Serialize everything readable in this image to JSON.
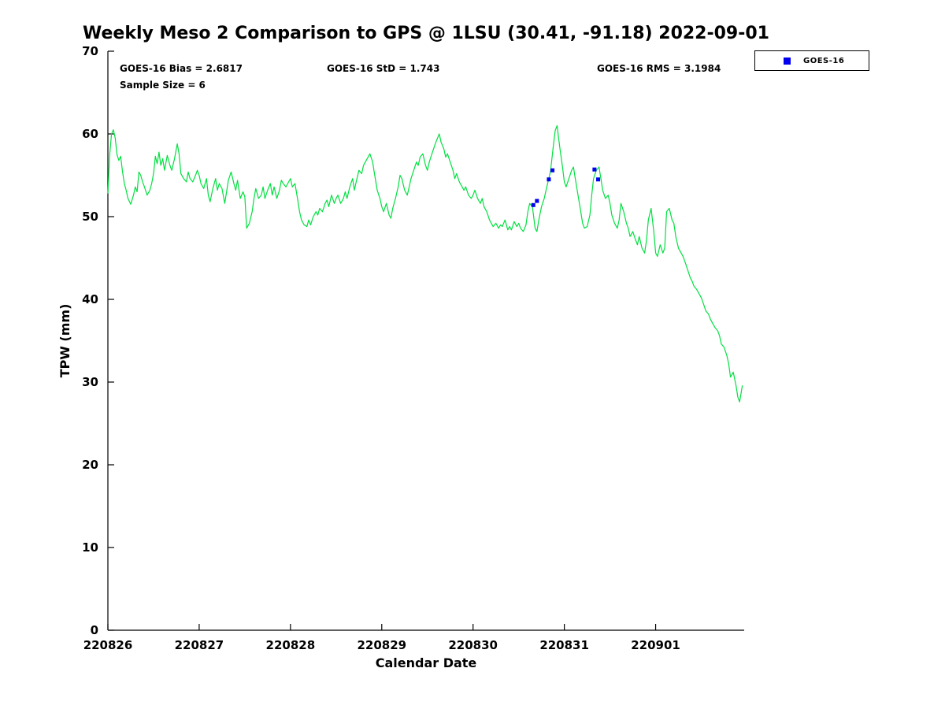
{
  "figure": {
    "title": "Weekly Meso 2 Comparison to GPS @ 1LSU (30.41, -91.18) 2022-09-01"
  },
  "stats_text": {
    "bias": "GOES-16 Bias = 2.6817",
    "std": "GOES-16 StD = 1.743",
    "rms": "GOES-16 RMS = 3.1984",
    "sample_size": "Sample Size = 6"
  },
  "legend": {
    "label": "GOES-16",
    "marker_color": "#0000ee"
  },
  "chart_data": {
    "type": "line",
    "title": "Weekly Meso 2 Comparison to GPS @ 1LSU (30.41, -91.18) 2022-09-01",
    "xlabel": "Calendar Date",
    "ylabel": "TPW (mm)",
    "xlim": [
      0,
      6.97
    ],
    "ylim": [
      0,
      70
    ],
    "yticks": [
      0,
      10,
      20,
      30,
      40,
      50,
      60,
      70
    ],
    "xticks": [
      {
        "pos": 0,
        "label": "220826"
      },
      {
        "pos": 1,
        "label": "220827"
      },
      {
        "pos": 2,
        "label": "220828"
      },
      {
        "pos": 3,
        "label": "220829"
      },
      {
        "pos": 4,
        "label": "220830"
      },
      {
        "pos": 5,
        "label": "220831"
      },
      {
        "pos": 6,
        "label": "220901"
      }
    ],
    "grid": false,
    "legend_position": "top-right-outside",
    "stats": {
      "bias": 2.6817,
      "std": 1.743,
      "rms": 3.1984,
      "sample_size": 6
    },
    "series": [
      {
        "name": "GPS TPW",
        "type": "line",
        "color": "#00e040",
        "points": [
          [
            0.0,
            52.8
          ],
          [
            0.02,
            57.5
          ],
          [
            0.04,
            60.0
          ],
          [
            0.06,
            60.5
          ],
          [
            0.08,
            59.5
          ],
          [
            0.1,
            57.5
          ],
          [
            0.12,
            56.8
          ],
          [
            0.14,
            57.3
          ],
          [
            0.16,
            55.5
          ],
          [
            0.18,
            54.0
          ],
          [
            0.2,
            53.2
          ],
          [
            0.22,
            52.2
          ],
          [
            0.25,
            51.5
          ],
          [
            0.28,
            52.6
          ],
          [
            0.3,
            53.6
          ],
          [
            0.32,
            53.0
          ],
          [
            0.34,
            55.4
          ],
          [
            0.36,
            55.0
          ],
          [
            0.38,
            54.2
          ],
          [
            0.4,
            53.6
          ],
          [
            0.43,
            52.6
          ],
          [
            0.46,
            53.2
          ],
          [
            0.48,
            54.0
          ],
          [
            0.5,
            55.2
          ],
          [
            0.52,
            57.3
          ],
          [
            0.54,
            56.4
          ],
          [
            0.56,
            57.8
          ],
          [
            0.58,
            56.2
          ],
          [
            0.6,
            57.0
          ],
          [
            0.62,
            55.6
          ],
          [
            0.65,
            57.4
          ],
          [
            0.68,
            56.2
          ],
          [
            0.7,
            55.6
          ],
          [
            0.73,
            57.0
          ],
          [
            0.76,
            58.8
          ],
          [
            0.78,
            57.6
          ],
          [
            0.8,
            55.2
          ],
          [
            0.83,
            54.6
          ],
          [
            0.86,
            54.2
          ],
          [
            0.88,
            55.4
          ],
          [
            0.9,
            54.6
          ],
          [
            0.93,
            54.2
          ],
          [
            0.96,
            55.0
          ],
          [
            0.98,
            55.6
          ],
          [
            1.0,
            55.0
          ],
          [
            1.02,
            54.0
          ],
          [
            1.05,
            53.4
          ],
          [
            1.08,
            54.6
          ],
          [
            1.1,
            52.6
          ],
          [
            1.12,
            51.8
          ],
          [
            1.15,
            53.4
          ],
          [
            1.18,
            54.6
          ],
          [
            1.2,
            53.2
          ],
          [
            1.22,
            54.0
          ],
          [
            1.25,
            53.4
          ],
          [
            1.28,
            51.6
          ],
          [
            1.3,
            53.0
          ],
          [
            1.32,
            54.4
          ],
          [
            1.35,
            55.4
          ],
          [
            1.38,
            54.0
          ],
          [
            1.4,
            53.2
          ],
          [
            1.42,
            54.4
          ],
          [
            1.45,
            52.2
          ],
          [
            1.48,
            53.0
          ],
          [
            1.5,
            52.4
          ],
          [
            1.52,
            48.6
          ],
          [
            1.55,
            49.2
          ],
          [
            1.58,
            50.6
          ],
          [
            1.6,
            52.2
          ],
          [
            1.62,
            53.4
          ],
          [
            1.65,
            52.2
          ],
          [
            1.68,
            52.6
          ],
          [
            1.7,
            53.6
          ],
          [
            1.72,
            52.2
          ],
          [
            1.75,
            53.2
          ],
          [
            1.78,
            54.0
          ],
          [
            1.8,
            52.6
          ],
          [
            1.82,
            53.6
          ],
          [
            1.85,
            52.2
          ],
          [
            1.88,
            53.2
          ],
          [
            1.9,
            54.4
          ],
          [
            1.92,
            54.0
          ],
          [
            1.95,
            53.6
          ],
          [
            1.98,
            54.2
          ],
          [
            2.0,
            54.6
          ],
          [
            2.02,
            53.6
          ],
          [
            2.05,
            54.0
          ],
          [
            2.08,
            52.0
          ],
          [
            2.1,
            50.6
          ],
          [
            2.12,
            49.6
          ],
          [
            2.15,
            49.0
          ],
          [
            2.18,
            48.8
          ],
          [
            2.2,
            49.6
          ],
          [
            2.22,
            49.0
          ],
          [
            2.25,
            50.0
          ],
          [
            2.28,
            50.6
          ],
          [
            2.3,
            50.2
          ],
          [
            2.32,
            51.0
          ],
          [
            2.35,
            50.6
          ],
          [
            2.38,
            51.6
          ],
          [
            2.4,
            52.0
          ],
          [
            2.42,
            51.2
          ],
          [
            2.45,
            52.6
          ],
          [
            2.48,
            51.6
          ],
          [
            2.5,
            52.2
          ],
          [
            2.52,
            52.6
          ],
          [
            2.55,
            51.6
          ],
          [
            2.58,
            52.2
          ],
          [
            2.6,
            53.0
          ],
          [
            2.62,
            52.2
          ],
          [
            2.65,
            53.6
          ],
          [
            2.68,
            54.6
          ],
          [
            2.7,
            53.2
          ],
          [
            2.72,
            54.2
          ],
          [
            2.75,
            55.6
          ],
          [
            2.78,
            55.2
          ],
          [
            2.8,
            56.2
          ],
          [
            2.82,
            56.6
          ],
          [
            2.85,
            57.2
          ],
          [
            2.87,
            57.6
          ],
          [
            2.9,
            56.6
          ],
          [
            2.92,
            55.2
          ],
          [
            2.95,
            53.2
          ],
          [
            2.98,
            52.2
          ],
          [
            3.0,
            51.2
          ],
          [
            3.02,
            50.6
          ],
          [
            3.05,
            51.6
          ],
          [
            3.08,
            50.2
          ],
          [
            3.1,
            49.8
          ],
          [
            3.12,
            51.0
          ],
          [
            3.15,
            52.2
          ],
          [
            3.18,
            53.6
          ],
          [
            3.2,
            55.0
          ],
          [
            3.22,
            54.6
          ],
          [
            3.25,
            53.2
          ],
          [
            3.28,
            52.6
          ],
          [
            3.3,
            53.6
          ],
          [
            3.32,
            54.6
          ],
          [
            3.35,
            55.6
          ],
          [
            3.38,
            56.6
          ],
          [
            3.4,
            56.2
          ],
          [
            3.42,
            57.2
          ],
          [
            3.45,
            57.6
          ],
          [
            3.48,
            56.2
          ],
          [
            3.5,
            55.6
          ],
          [
            3.52,
            56.6
          ],
          [
            3.55,
            57.6
          ],
          [
            3.58,
            58.6
          ],
          [
            3.6,
            59.2
          ],
          [
            3.63,
            60.0
          ],
          [
            3.65,
            59.0
          ],
          [
            3.68,
            58.2
          ],
          [
            3.7,
            57.2
          ],
          [
            3.72,
            57.6
          ],
          [
            3.75,
            56.6
          ],
          [
            3.78,
            55.6
          ],
          [
            3.8,
            54.6
          ],
          [
            3.82,
            55.2
          ],
          [
            3.85,
            54.2
          ],
          [
            3.88,
            53.6
          ],
          [
            3.9,
            53.2
          ],
          [
            3.92,
            53.6
          ],
          [
            3.95,
            52.6
          ],
          [
            3.98,
            52.2
          ],
          [
            4.0,
            52.6
          ],
          [
            4.02,
            53.2
          ],
          [
            4.05,
            52.2
          ],
          [
            4.08,
            51.6
          ],
          [
            4.1,
            52.2
          ],
          [
            4.12,
            51.2
          ],
          [
            4.15,
            50.6
          ],
          [
            4.18,
            49.6
          ],
          [
            4.2,
            49.2
          ],
          [
            4.22,
            48.8
          ],
          [
            4.25,
            49.2
          ],
          [
            4.28,
            48.6
          ],
          [
            4.3,
            49.0
          ],
          [
            4.32,
            48.8
          ],
          [
            4.35,
            49.6
          ],
          [
            4.38,
            48.4
          ],
          [
            4.4,
            48.8
          ],
          [
            4.42,
            48.4
          ],
          [
            4.45,
            49.4
          ],
          [
            4.48,
            48.8
          ],
          [
            4.5,
            49.2
          ],
          [
            4.52,
            48.6
          ],
          [
            4.55,
            48.2
          ],
          [
            4.58,
            49.0
          ],
          [
            4.6,
            50.6
          ],
          [
            4.62,
            51.6
          ],
          [
            4.65,
            51.2
          ],
          [
            4.68,
            48.6
          ],
          [
            4.7,
            48.2
          ],
          [
            4.72,
            49.6
          ],
          [
            4.75,
            51.2
          ],
          [
            4.78,
            52.2
          ],
          [
            4.8,
            53.2
          ],
          [
            4.83,
            54.6
          ],
          [
            4.85,
            55.6
          ],
          [
            4.88,
            58.6
          ],
          [
            4.9,
            60.4
          ],
          [
            4.92,
            61.0
          ],
          [
            4.95,
            58.4
          ],
          [
            4.98,
            56.0
          ],
          [
            5.0,
            54.2
          ],
          [
            5.02,
            53.6
          ],
          [
            5.05,
            54.6
          ],
          [
            5.08,
            55.6
          ],
          [
            5.1,
            56.0
          ],
          [
            5.12,
            54.6
          ],
          [
            5.15,
            52.6
          ],
          [
            5.18,
            50.6
          ],
          [
            5.2,
            49.2
          ],
          [
            5.22,
            48.6
          ],
          [
            5.25,
            48.8
          ],
          [
            5.28,
            50.2
          ],
          [
            5.3,
            52.6
          ],
          [
            5.32,
            54.6
          ],
          [
            5.35,
            55.6
          ],
          [
            5.38,
            56.0
          ],
          [
            5.4,
            54.6
          ],
          [
            5.42,
            53.2
          ],
          [
            5.45,
            52.2
          ],
          [
            5.48,
            52.6
          ],
          [
            5.5,
            51.6
          ],
          [
            5.52,
            50.2
          ],
          [
            5.55,
            49.2
          ],
          [
            5.58,
            48.6
          ],
          [
            5.6,
            49.6
          ],
          [
            5.62,
            51.6
          ],
          [
            5.65,
            50.6
          ],
          [
            5.68,
            49.2
          ],
          [
            5.7,
            48.6
          ],
          [
            5.72,
            47.6
          ],
          [
            5.75,
            48.2
          ],
          [
            5.78,
            47.2
          ],
          [
            5.8,
            46.6
          ],
          [
            5.82,
            47.6
          ],
          [
            5.85,
            46.2
          ],
          [
            5.88,
            45.6
          ],
          [
            5.9,
            47.2
          ],
          [
            5.92,
            49.6
          ],
          [
            5.95,
            51.0
          ],
          [
            5.98,
            48.2
          ],
          [
            6.0,
            45.6
          ],
          [
            6.02,
            45.2
          ],
          [
            6.05,
            46.6
          ],
          [
            6.08,
            45.6
          ],
          [
            6.1,
            46.2
          ],
          [
            6.12,
            50.6
          ],
          [
            6.15,
            51.0
          ],
          [
            6.18,
            49.6
          ],
          [
            6.2,
            49.2
          ],
          [
            6.22,
            47.6
          ],
          [
            6.25,
            46.2
          ],
          [
            6.28,
            45.6
          ],
          [
            6.3,
            45.2
          ],
          [
            6.32,
            44.6
          ],
          [
            6.35,
            43.6
          ],
          [
            6.38,
            42.6
          ],
          [
            6.4,
            42.2
          ],
          [
            6.42,
            41.6
          ],
          [
            6.45,
            41.2
          ],
          [
            6.48,
            40.6
          ],
          [
            6.5,
            40.2
          ],
          [
            6.52,
            39.6
          ],
          [
            6.55,
            38.6
          ],
          [
            6.58,
            38.2
          ],
          [
            6.6,
            37.6
          ],
          [
            6.62,
            37.2
          ],
          [
            6.65,
            36.6
          ],
          [
            6.68,
            36.2
          ],
          [
            6.7,
            35.6
          ],
          [
            6.72,
            34.6
          ],
          [
            6.75,
            34.2
          ],
          [
            6.78,
            33.2
          ],
          [
            6.8,
            32.2
          ],
          [
            6.82,
            30.6
          ],
          [
            6.85,
            31.2
          ],
          [
            6.88,
            29.6
          ],
          [
            6.9,
            28.2
          ],
          [
            6.92,
            27.6
          ],
          [
            6.95,
            29.6
          ]
        ]
      },
      {
        "name": "GOES-16",
        "type": "scatter",
        "marker": "square",
        "color": "#0000ee",
        "points": [
          [
            4.66,
            51.4
          ],
          [
            4.7,
            51.9
          ],
          [
            4.83,
            54.5
          ],
          [
            4.87,
            55.6
          ],
          [
            5.33,
            55.7
          ],
          [
            5.37,
            54.5
          ]
        ]
      }
    ]
  }
}
